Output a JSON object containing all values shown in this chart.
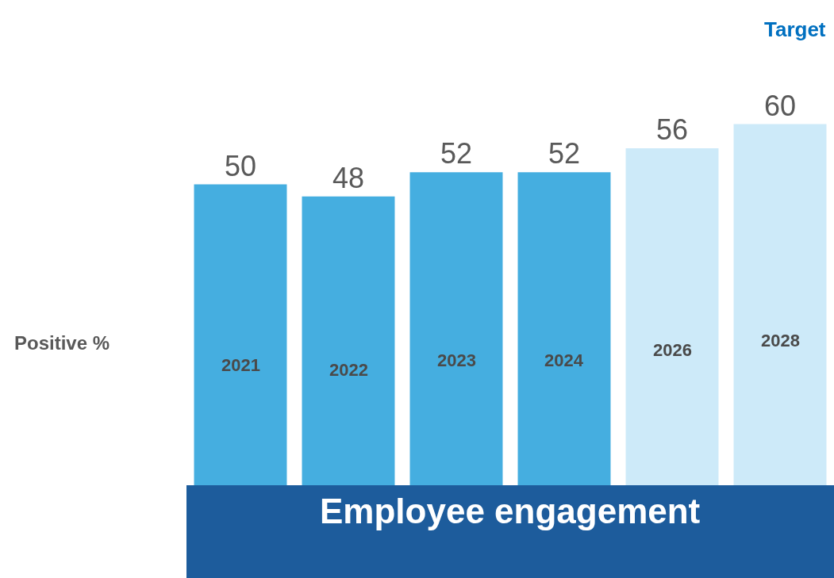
{
  "chart_data": {
    "type": "bar",
    "categories": [
      "2021",
      "2022",
      "2023",
      "2024",
      "2026",
      "2028"
    ],
    "values": [
      50,
      48,
      52,
      52,
      56,
      60
    ],
    "colors": [
      "#45aee0",
      "#45aee0",
      "#45aee0",
      "#45aee0",
      "#cdeaf9",
      "#cdeaf9"
    ],
    "data_labels": true,
    "ylabel": "Positive %",
    "xlabel": "Employee engagement",
    "annotations": [
      "Target"
    ],
    "legend": false
  }
}
